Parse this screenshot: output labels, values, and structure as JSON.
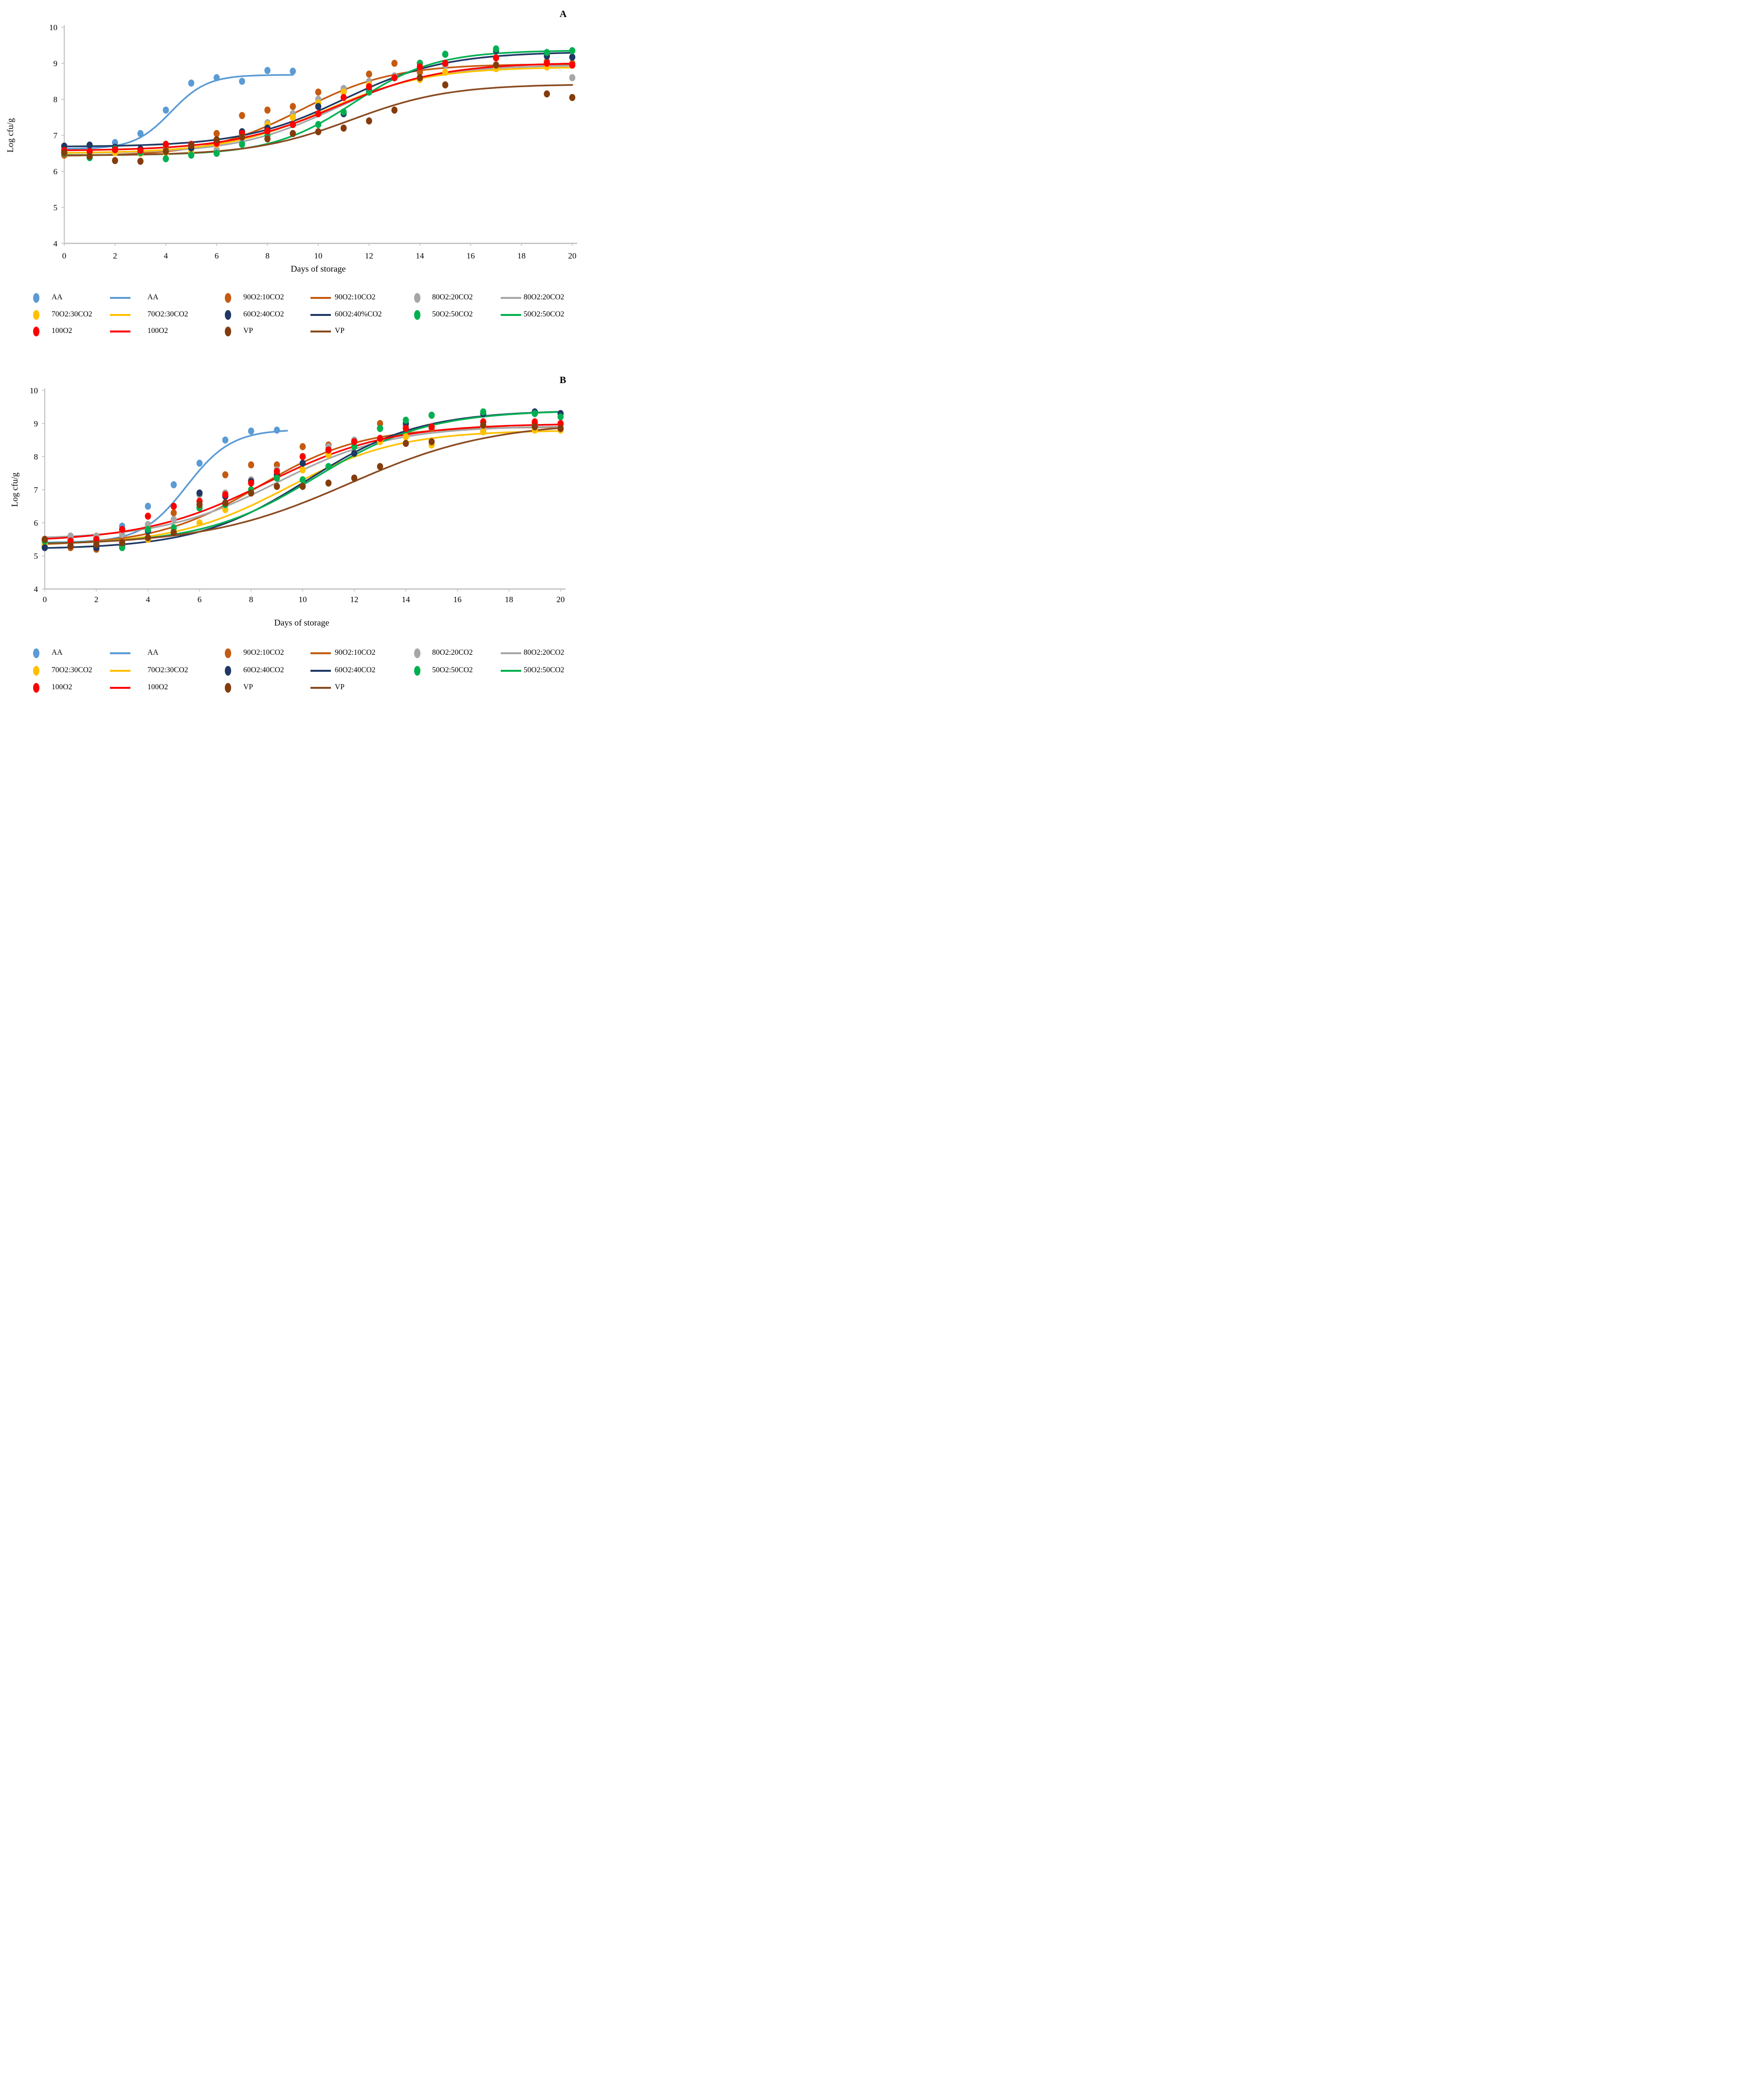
{
  "figure": {
    "background": "#ffffff",
    "panel_a_label": "A",
    "panel_b_label": "B"
  },
  "colors": {
    "AA": "#5B9BD5",
    "90O2:10CO2": "#C55A11",
    "80O2:20CO2": "#A6A6A6",
    "70O2:30CO2": "#FFC000",
    "60O2:40CO2": "#1F3864",
    "50O2:50CO2": "#00B050",
    "100O2": "#FF0000",
    "VP": "#843C0C",
    "VP_line": "#8A4A20",
    "axis": "#BFBFBF"
  },
  "legend_a": {
    "rows": [
      [
        {
          "type": "point",
          "label": "AA",
          "color": "#5B9BD5"
        },
        {
          "type": "line",
          "label": "AA",
          "color": "#5B9BD5"
        },
        {
          "type": "point",
          "label": "90O2:10CO2",
          "color": "#C55A11"
        },
        {
          "type": "line",
          "label": "90O2:10CO2",
          "color": "#C55A11"
        },
        {
          "type": "point",
          "label": "80O2:20CO2",
          "color": "#A6A6A6"
        },
        {
          "type": "line",
          "label": "80O2:20CO2",
          "color": "#A6A6A6"
        }
      ],
      [
        {
          "type": "point",
          "label": "70O2:30CO2",
          "color": "#FFC000"
        },
        {
          "type": "line",
          "label": "70O2:30CO2",
          "color": "#FFC000"
        },
        {
          "type": "point",
          "label": "60O2:40CO2",
          "color": "#1F3864"
        },
        {
          "type": "line",
          "label": "60O2:40%CO2",
          "color": "#1F3864"
        },
        {
          "type": "point",
          "label": "50O2:50CO2",
          "color": "#00B050"
        },
        {
          "type": "line",
          "label": "50O2:50CO2",
          "color": "#00B050"
        }
      ],
      [
        {
          "type": "point",
          "label": "100O2",
          "color": "#FF0000"
        },
        {
          "type": "line",
          "label": "100O2",
          "color": "#FF0000"
        },
        {
          "type": "point",
          "label": "VP",
          "color": "#843C0C"
        },
        {
          "type": "line",
          "label": "VP",
          "color": "#8A4A20"
        }
      ]
    ]
  },
  "legend_b": {
    "rows": [
      [
        {
          "type": "point",
          "label": "AA",
          "color": "#5B9BD5"
        },
        {
          "type": "line",
          "label": "AA",
          "color": "#5B9BD5"
        },
        {
          "type": "point",
          "label": "90O2:10CO2",
          "color": "#C55A11"
        },
        {
          "type": "line",
          "label": "90O2:10CO2",
          "color": "#C55A11"
        },
        {
          "type": "point",
          "label": "80O2:20CO2",
          "color": "#A6A6A6"
        },
        {
          "type": "line",
          "label": "80O2:20CO2",
          "color": "#A6A6A6"
        }
      ],
      [
        {
          "type": "point",
          "label": "70O2:30CO2",
          "color": "#FFC000"
        },
        {
          "type": "line",
          "label": "70O2:30CO2",
          "color": "#FFC000"
        },
        {
          "type": "point",
          "label": "60O2:40CO2",
          "color": "#1F3864"
        },
        {
          "type": "line",
          "label": "60O2:40CO2",
          "color": "#1F3864"
        },
        {
          "type": "point",
          "label": "50O2:50CO2",
          "color": "#00B050"
        },
        {
          "type": "line",
          "label": "50O2:50CO2",
          "color": "#00B050"
        }
      ],
      [
        {
          "type": "point",
          "label": "100O2",
          "color": "#FF0000"
        },
        {
          "type": "line",
          "label": "100O2",
          "color": "#FF0000"
        },
        {
          "type": "point",
          "label": "VP",
          "color": "#843C0C"
        },
        {
          "type": "line",
          "label": "VP",
          "color": "#8A4A20"
        }
      ]
    ]
  },
  "chart_data": [
    {
      "panel": "A",
      "type": "scatter",
      "title": "",
      "xlabel": "Days of storage",
      "ylabel": "Log cfu/g",
      "xlim": [
        0,
        20
      ],
      "ylim": [
        4,
        10
      ],
      "x_ticks": [
        0,
        2,
        4,
        6,
        8,
        10,
        12,
        14,
        16,
        18,
        20
      ],
      "y_ticks": [
        4,
        5,
        6,
        7,
        8,
        9,
        10
      ],
      "grid": false,
      "legend_position": "below",
      "series": [
        {
          "name": "AA",
          "color": "#5B9BD5",
          "days": [
            0,
            1,
            2,
            3,
            4,
            5,
            6,
            7,
            8,
            9
          ],
          "values": [
            6.6,
            6.65,
            6.8,
            7.05,
            7.7,
            8.45,
            8.6,
            8.5,
            8.8,
            8.78
          ],
          "fit_line": {
            "lo": 6.62,
            "hi": 8.68,
            "mid": 4.2,
            "k": 1.4,
            "d_end": 9
          }
        },
        {
          "name": "90O2:10CO2",
          "color": "#C55A11",
          "days": [
            0,
            1,
            2,
            3,
            4,
            5,
            6,
            7,
            8,
            9,
            10,
            11,
            12,
            13,
            14,
            15,
            17,
            19,
            20
          ],
          "values": [
            6.45,
            6.5,
            6.55,
            6.55,
            6.65,
            6.7,
            7.05,
            7.55,
            7.7,
            7.8,
            8.2,
            8.25,
            8.7,
            9.0,
            8.75,
            8.95,
            8.9,
            9.05,
            9.0
          ],
          "fit_line": {
            "lo": 6.42,
            "hi": 8.98,
            "mid": 9.3,
            "k": 0.55,
            "d_end": 20
          }
        },
        {
          "name": "80O2:20CO2",
          "color": "#A6A6A6",
          "days": [
            0,
            1,
            2,
            3,
            4,
            5,
            6,
            7,
            8,
            9,
            10,
            11,
            12,
            13,
            14,
            15,
            17,
            19,
            20
          ],
          "values": [
            6.55,
            6.5,
            6.55,
            6.5,
            6.55,
            6.52,
            6.6,
            6.8,
            7.35,
            7.6,
            8.0,
            8.3,
            8.5,
            8.65,
            9.0,
            8.95,
            8.95,
            8.9,
            8.6
          ],
          "fit_line": {
            "lo": 6.5,
            "hi": 8.95,
            "mid": 10.6,
            "k": 0.52,
            "d_end": 20
          }
        },
        {
          "name": "70O2:30CO2",
          "color": "#FFC000",
          "days": [
            0,
            1,
            2,
            3,
            4,
            5,
            6,
            7,
            8,
            9,
            10,
            11,
            12,
            13,
            14,
            15,
            17,
            19,
            20
          ],
          "values": [
            6.53,
            6.5,
            6.52,
            6.5,
            6.52,
            6.55,
            6.75,
            7.0,
            7.3,
            7.5,
            7.9,
            8.2,
            8.4,
            8.6,
            8.55,
            8.75,
            8.85,
            8.9,
            8.95
          ],
          "fit_line": {
            "lo": 6.5,
            "hi": 8.9,
            "mid": 10.3,
            "k": 0.5,
            "d_end": 20
          }
        },
        {
          "name": "60O2:40CO2",
          "color": "#1F3864",
          "days": [
            0,
            1,
            2,
            3,
            4,
            5,
            6,
            7,
            8,
            9,
            10,
            11,
            12,
            13,
            14,
            15,
            17,
            19,
            20
          ],
          "values": [
            6.7,
            6.73,
            6.67,
            6.62,
            6.75,
            6.65,
            6.85,
            7.1,
            7.2,
            7.3,
            7.8,
            7.6,
            8.25,
            8.6,
            9.0,
            9.25,
            9.35,
            9.2,
            9.17
          ],
          "fit_line": {
            "lo": 6.68,
            "hi": 9.32,
            "mid": 11.0,
            "k": 0.5,
            "d_end": 20
          }
        },
        {
          "name": "50O2:50CO2",
          "color": "#00B050",
          "days": [
            0,
            1,
            2,
            3,
            4,
            5,
            6,
            7,
            8,
            9,
            10,
            11,
            12,
            13,
            14,
            15,
            17,
            19,
            20
          ],
          "values": [
            6.5,
            6.38,
            6.62,
            6.52,
            6.35,
            6.45,
            6.5,
            6.75,
            7.0,
            7.05,
            7.3,
            7.65,
            8.2,
            8.6,
            9.0,
            9.25,
            9.4,
            9.3,
            9.35
          ],
          "fit_line": {
            "lo": 6.45,
            "hi": 9.36,
            "mid": 11.4,
            "k": 0.62,
            "d_end": 20
          }
        },
        {
          "name": "100O2",
          "color": "#FF0000",
          "days": [
            0,
            1,
            2,
            3,
            4,
            5,
            6,
            7,
            8,
            9,
            10,
            11,
            12,
            13,
            14,
            15,
            17,
            19,
            20
          ],
          "values": [
            6.58,
            6.55,
            6.6,
            6.58,
            6.75,
            6.75,
            6.78,
            7.05,
            7.12,
            7.3,
            7.6,
            8.05,
            8.35,
            8.6,
            8.9,
            9.0,
            9.15,
            9.0,
            8.95
          ],
          "fit_line": {
            "lo": 6.57,
            "hi": 9.02,
            "mid": 10.7,
            "k": 0.48,
            "d_end": 20
          }
        },
        {
          "name": "VP",
          "color": "#843C0C",
          "line_color": "#8A4A20",
          "days": [
            0,
            1,
            2,
            3,
            4,
            5,
            6,
            7,
            8,
            9,
            10,
            11,
            12,
            13,
            14,
            15,
            17,
            19,
            20
          ],
          "values": [
            6.52,
            6.42,
            6.3,
            6.28,
            6.55,
            6.72,
            6.88,
            6.95,
            6.9,
            7.05,
            7.1,
            7.2,
            7.4,
            7.7,
            8.6,
            8.4,
            8.95,
            8.15,
            8.05
          ],
          "fit_line": {
            "lo": 6.44,
            "hi": 8.42,
            "mid": 11.3,
            "k": 0.52,
            "d_end": 20
          }
        }
      ]
    },
    {
      "panel": "B",
      "type": "scatter",
      "title": "",
      "xlabel": "Days of storage",
      "ylabel": "Log cfu/g",
      "xlim": [
        0,
        20
      ],
      "ylim": [
        4,
        10
      ],
      "x_ticks": [
        0,
        2,
        4,
        6,
        8,
        10,
        12,
        14,
        16,
        18,
        20
      ],
      "y_ticks": [
        4,
        5,
        6,
        7,
        8,
        9,
        10
      ],
      "grid": false,
      "legend_position": "below",
      "series": [
        {
          "name": "AA",
          "color": "#5B9BD5",
          "days": [
            0,
            1,
            2,
            3,
            4,
            5,
            6,
            7,
            8,
            9
          ],
          "values": [
            5.45,
            5.5,
            5.55,
            5.9,
            6.5,
            7.15,
            7.8,
            8.5,
            8.77,
            8.8
          ],
          "fit_line": {
            "lo": 5.4,
            "hi": 8.82,
            "mid": 5.5,
            "k": 1.15,
            "d_end": 9.5
          }
        },
        {
          "name": "90O2:10CO2",
          "color": "#C55A11",
          "days": [
            0,
            1,
            2,
            3,
            4,
            5,
            6,
            7,
            8,
            9,
            10,
            11,
            12,
            13,
            14,
            15,
            17,
            19,
            20
          ],
          "values": [
            5.3,
            5.25,
            5.2,
            5.45,
            5.85,
            6.3,
            6.45,
            7.45,
            7.75,
            7.75,
            8.3,
            8.35,
            8.45,
            9.0,
            8.9,
            8.85,
            8.75,
            9.0,
            8.85
          ],
          "fit_line": {
            "lo": 5.3,
            "hi": 8.9,
            "mid": 8.3,
            "k": 0.5,
            "d_end": 20
          }
        },
        {
          "name": "80O2:20CO2",
          "color": "#A6A6A6",
          "days": [
            0,
            1,
            2,
            3,
            4,
            5,
            6,
            7,
            8,
            9,
            10,
            11,
            12,
            13,
            14,
            15,
            17,
            19,
            20
          ],
          "values": [
            5.5,
            5.6,
            5.6,
            5.65,
            5.95,
            6.1,
            6.85,
            6.9,
            7.3,
            7.6,
            8.0,
            8.3,
            8.5,
            8.85,
            8.95,
            8.9,
            8.85,
            8.9,
            8.95
          ],
          "fit_line": {
            "lo": 5.5,
            "hi": 8.93,
            "mid": 9.0,
            "k": 0.45,
            "d_end": 20
          }
        },
        {
          "name": "70O2:30CO2",
          "color": "#FFC000",
          "days": [
            0,
            1,
            2,
            3,
            4,
            5,
            6,
            7,
            8,
            9,
            10,
            11,
            12,
            13,
            14,
            15,
            17,
            19,
            20
          ],
          "values": [
            5.35,
            5.3,
            5.4,
            5.35,
            5.5,
            5.75,
            6.0,
            6.4,
            7.0,
            7.4,
            7.6,
            8.05,
            8.3,
            8.45,
            8.6,
            8.35,
            8.75,
            8.8,
            8.8
          ],
          "fit_line": {
            "lo": 5.32,
            "hi": 8.8,
            "mid": 9.4,
            "k": 0.46,
            "d_end": 20
          }
        },
        {
          "name": "60O2:40CO2",
          "color": "#1F3864",
          "days": [
            0,
            1,
            2,
            3,
            4,
            5,
            6,
            7,
            8,
            9,
            10,
            11,
            12,
            13,
            14,
            15,
            17,
            19,
            20
          ],
          "values": [
            5.25,
            5.3,
            5.25,
            5.3,
            5.75,
            5.7,
            6.9,
            6.8,
            7.25,
            7.45,
            7.8,
            8.2,
            8.1,
            8.85,
            9.0,
            9.25,
            9.3,
            9.35,
            9.3
          ],
          "fit_line": {
            "lo": 5.2,
            "hi": 9.4,
            "mid": 10.2,
            "k": 0.46,
            "d_end": 20
          }
        },
        {
          "name": "50O2:50CO2",
          "color": "#00B050",
          "days": [
            0,
            1,
            2,
            3,
            4,
            5,
            6,
            7,
            8,
            9,
            10,
            11,
            12,
            13,
            14,
            15,
            17,
            19,
            20
          ],
          "values": [
            5.45,
            5.4,
            5.45,
            5.25,
            5.8,
            5.85,
            6.45,
            6.55,
            7.0,
            7.35,
            7.3,
            7.7,
            8.3,
            8.85,
            9.1,
            9.25,
            9.35,
            9.3,
            9.2
          ],
          "fit_line": {
            "lo": 5.35,
            "hi": 9.4,
            "mid": 10.5,
            "k": 0.46,
            "d_end": 20
          }
        },
        {
          "name": "100O2",
          "color": "#FF0000",
          "days": [
            0,
            1,
            2,
            3,
            4,
            5,
            6,
            7,
            8,
            9,
            10,
            11,
            12,
            13,
            14,
            15,
            17,
            19,
            20
          ],
          "values": [
            5.5,
            5.45,
            5.5,
            5.8,
            6.2,
            6.5,
            6.65,
            6.85,
            7.2,
            7.55,
            8.0,
            8.2,
            8.45,
            8.55,
            8.85,
            8.9,
            9.05,
            9.05,
            9.0
          ],
          "fit_line": {
            "lo": 5.42,
            "hi": 9.0,
            "mid": 8.6,
            "k": 0.42,
            "d_end": 20
          }
        },
        {
          "name": "VP",
          "color": "#843C0C",
          "line_color": "#8A4A20",
          "days": [
            0,
            1,
            2,
            3,
            4,
            5,
            6,
            7,
            8,
            9,
            10,
            11,
            12,
            13,
            14,
            15,
            17,
            19,
            20
          ],
          "values": [
            5.5,
            5.3,
            5.35,
            5.4,
            5.55,
            5.7,
            6.55,
            6.6,
            6.9,
            7.1,
            7.1,
            7.2,
            7.35,
            7.7,
            8.4,
            8.45,
            8.95,
            8.9,
            8.85
          ],
          "fit_line": {
            "lo": 5.32,
            "hi": 9.05,
            "mid": 11.8,
            "k": 0.36,
            "d_end": 20
          }
        }
      ]
    }
  ]
}
